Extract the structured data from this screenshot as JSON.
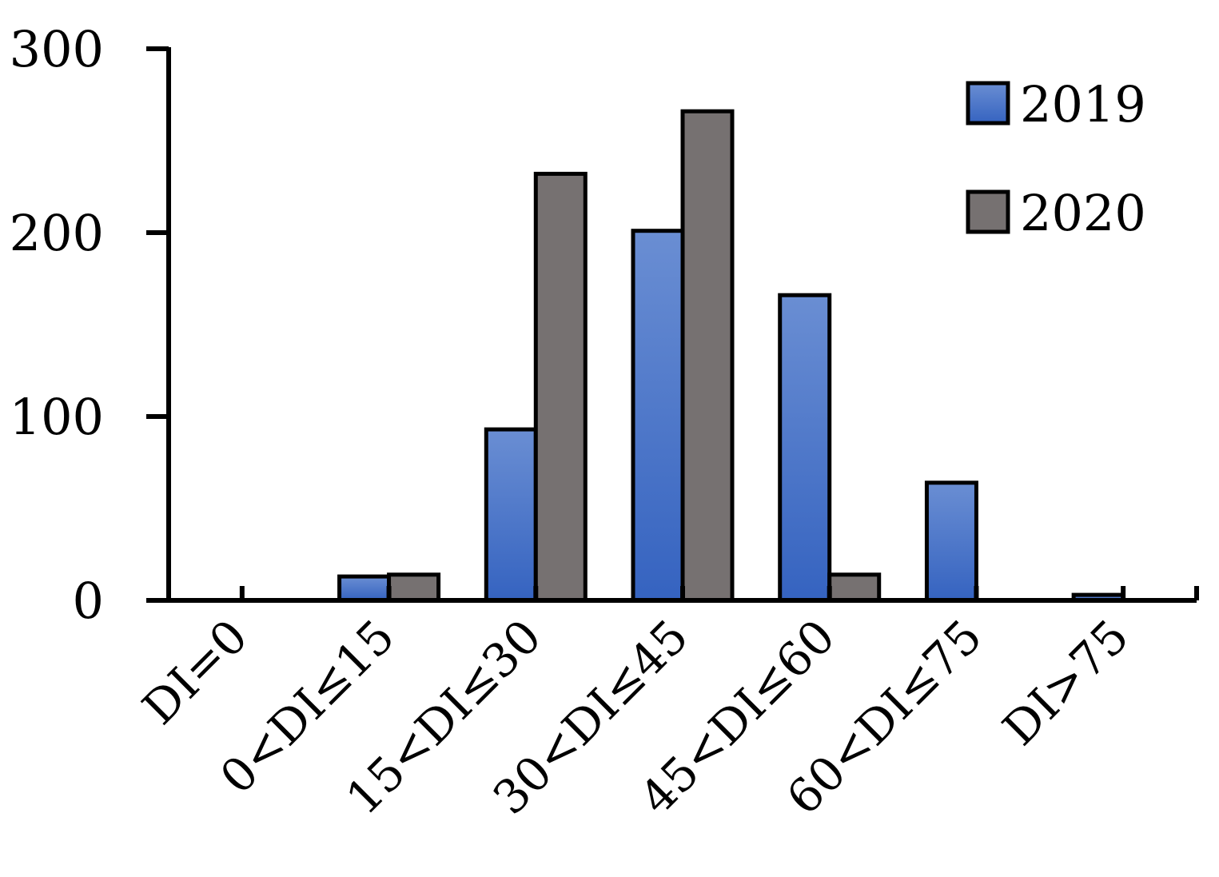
{
  "chart_data": {
    "type": "bar",
    "title": "",
    "xlabel": "",
    "ylabel": "",
    "ylim": [
      0,
      300
    ],
    "yticks": [
      0,
      100,
      200,
      300
    ],
    "grid": false,
    "legend_position": "top-right",
    "categories": [
      "DI=0",
      "0<DI≤15",
      "15<DI≤30",
      "30<DI≤45",
      "45<DI≤60",
      "60<DI≤75",
      "DI>75"
    ],
    "series": [
      {
        "name": "2019",
        "color": "#4472c4",
        "values": [
          0,
          13,
          93,
          201,
          166,
          64,
          3
        ]
      },
      {
        "name": "2020",
        "color": "#767171",
        "values": [
          0,
          14,
          232,
          266,
          14,
          0,
          0
        ]
      }
    ]
  }
}
